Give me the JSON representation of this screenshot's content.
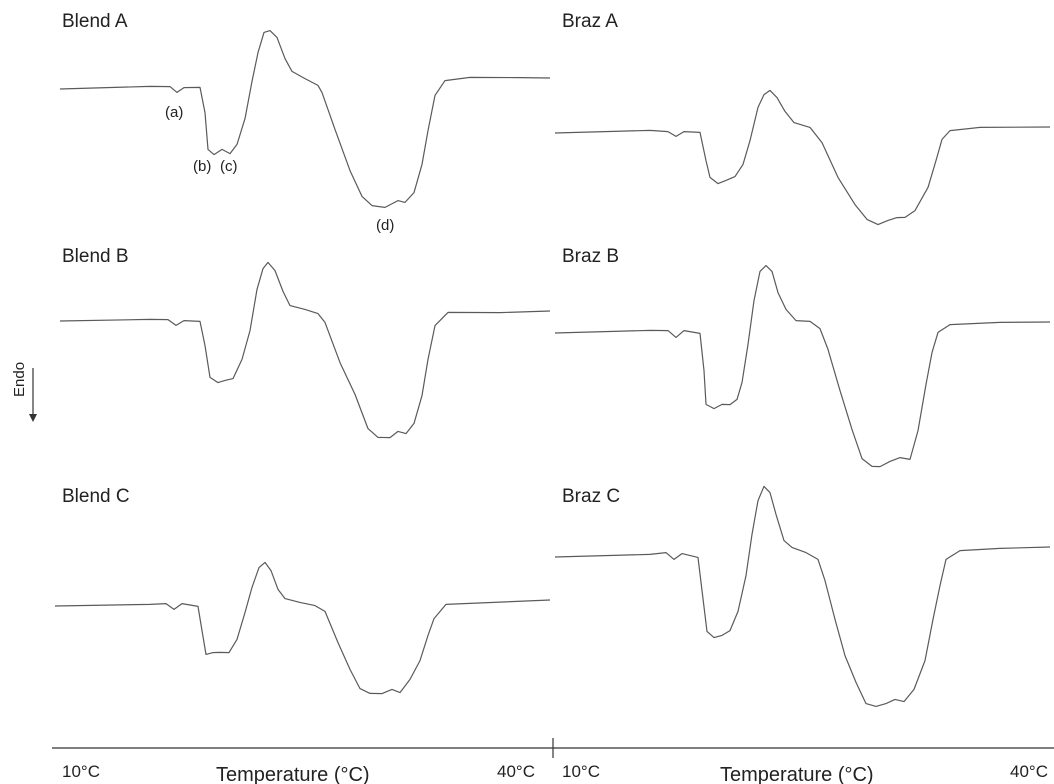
{
  "chart_data": {
    "type": "line",
    "ylabel": "Endo",
    "xlabel": "Temperature (°C)",
    "x_ticks": [
      "10°C",
      "40°C"
    ],
    "xlim": [
      10,
      40
    ],
    "panels": [
      {
        "title": "Blend A",
        "annotations": [
          "(a)",
          "(b)",
          "(c)",
          "(d)"
        ]
      },
      {
        "title": "Braz A"
      },
      {
        "title": "Blend B"
      },
      {
        "title": "Braz B"
      },
      {
        "title": "Blend C"
      },
      {
        "title": "Braz C"
      }
    ]
  },
  "colors": {
    "trace": "#5a5a5a",
    "text": "#222222"
  }
}
